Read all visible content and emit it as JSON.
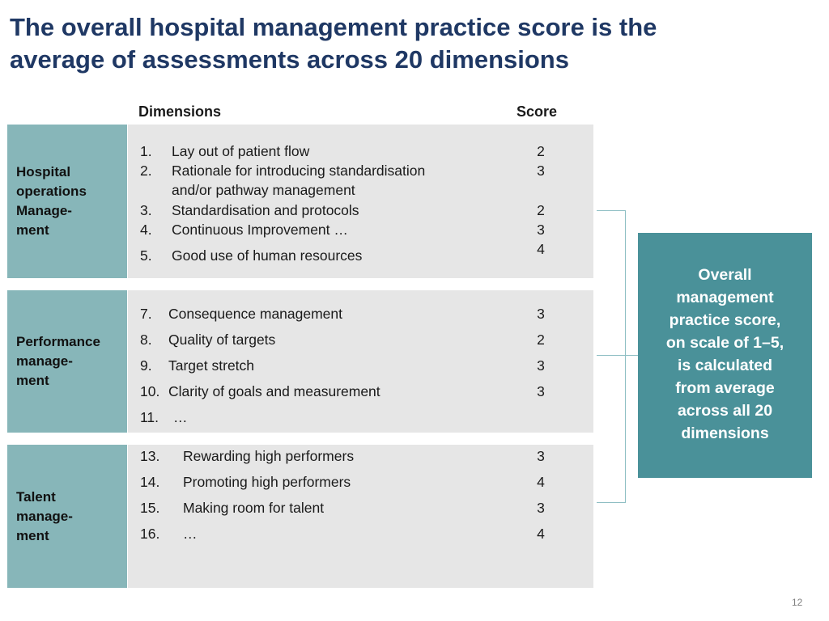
{
  "slide": {
    "title_line1": "The overall hospital management practice score is the",
    "title_line2": "average of assessments across 20 dimensions",
    "header_dimensions": "Dimensions",
    "header_score": "Score",
    "page_number": "12"
  },
  "sections": [
    {
      "category_lines": [
        "Hospital",
        "operations",
        "Manage-",
        "ment"
      ],
      "items": [
        {
          "num": "1.",
          "text": "Lay out of patient flow"
        },
        {
          "num": "2.",
          "text": "Rationale for introducing standardisation"
        },
        {
          "num": "",
          "text": "and/or pathway management"
        },
        {
          "num": "3.",
          "text": "Standardisation and protocols"
        },
        {
          "num": "4.",
          "text": "Continuous Improvement …"
        },
        {
          "num": "5.",
          "text": "Good use of human resources"
        }
      ],
      "scores": [
        "2",
        "3",
        "2",
        "3",
        "4"
      ]
    },
    {
      "category_lines": [
        "Performance",
        "manage-",
        "ment"
      ],
      "items": [
        {
          "num": "7.",
          "text": "Consequence management"
        },
        {
          "num": "8.",
          "text": "Quality of targets"
        },
        {
          "num": "9.",
          "text": "Target stretch"
        },
        {
          "num": "10.",
          "text": "Clarity of goals and measurement"
        },
        {
          "num": "11.",
          "text": "…"
        }
      ],
      "scores": [
        "3",
        "2",
        "3",
        "3"
      ]
    },
    {
      "category_lines": [
        "Talent",
        "manage-",
        "ment"
      ],
      "items": [
        {
          "num": "13.",
          "text": "Rewarding high performers"
        },
        {
          "num": "14.",
          "text": "Promoting high performers"
        },
        {
          "num": "15.",
          "text": "Making room for talent"
        },
        {
          "num": "16.",
          "text": "…"
        }
      ],
      "scores": [
        "3",
        "4",
        "3",
        "4"
      ]
    }
  ],
  "overall": {
    "lines": [
      "Overall",
      "management",
      "practice score,",
      "on scale of 1–5,",
      "is calculated",
      "from average",
      "across all 20",
      "dimensions"
    ]
  },
  "colors": {
    "title": "#1f3864",
    "category_fill": "#87b6b9",
    "panel_fill": "#e6e6e6",
    "overall_fill": "#4a9199",
    "bracket_line": "#8fbfc4"
  }
}
